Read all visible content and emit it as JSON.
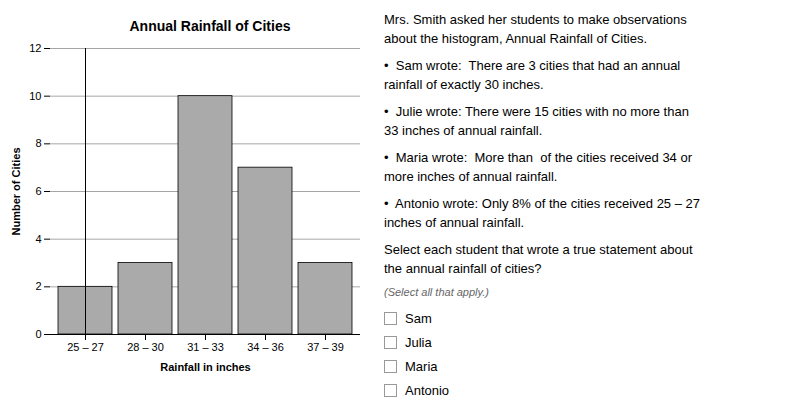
{
  "chart_data": {
    "type": "bar",
    "title": "Annual Rainfall of Cities",
    "xlabel": "Rainfall in inches",
    "ylabel": "Number of Cities",
    "categories": [
      "25 – 27",
      "28 – 30",
      "31 – 33",
      "34 – 36",
      "37 – 39"
    ],
    "values": [
      2,
      3,
      10,
      7,
      3
    ],
    "color": "#aaaaaa",
    "ylim": [
      0,
      12
    ],
    "yticks": [
      0,
      2,
      4,
      6,
      8,
      10,
      12
    ],
    "grid": true,
    "annotations": [
      [
        "Mrs. Smith asked her students to make observations",
        "about the histogram, Annual Rainfall of Cities."
      ],
      [
        "•  Sam wrote:  There are 3 cities that had an annual",
        "rainfall of exactly 30 inches."
      ],
      [
        "•  Julie wrote: There were 15 cities with no more than",
        "33 inches of annual rainfall."
      ],
      [
        "•  Maria wrote:  More than  of the cities received 34 or",
        "more inches of annual rainfall."
      ],
      [
        "•  Antonio wrote: Only 8% of the cities received 25 – 27",
        "inches of annual rainfall."
      ],
      [
        "Select each student that wrote a true statement about",
        "the annual rainfall of cities?"
      ]
    ],
    "note": "(Select all that apply.)",
    "choices": [
      "Sam",
      "Julia",
      "Maria",
      "Antonio"
    ]
  }
}
